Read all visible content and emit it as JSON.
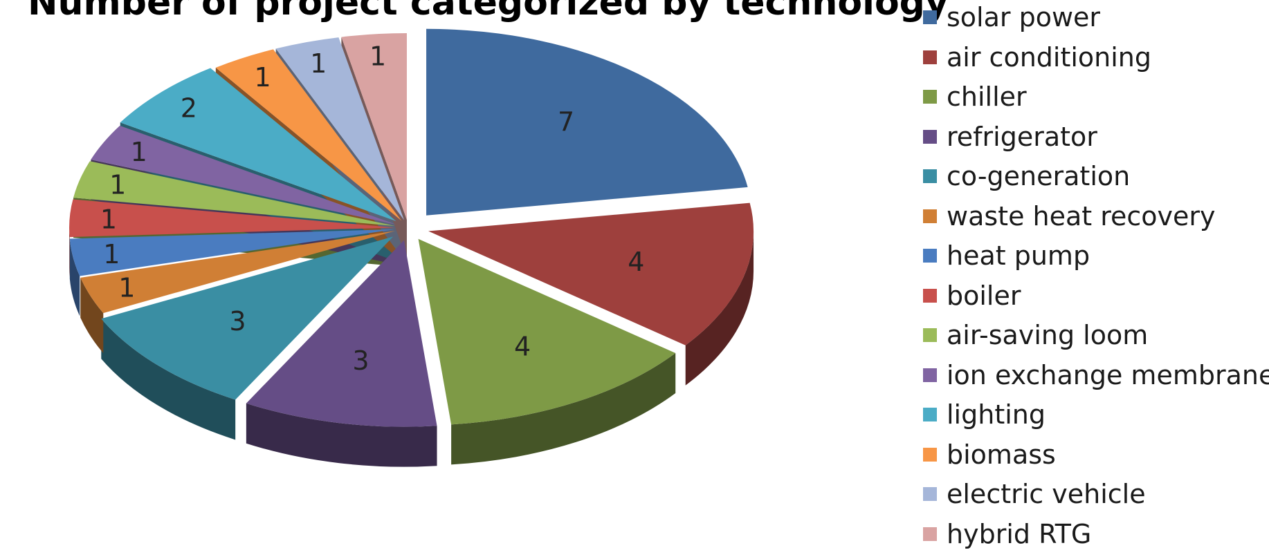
{
  "chart_data": {
    "type": "pie",
    "title": "Number of project categorized by technology",
    "legend_position": "right",
    "categories": [
      "solar power",
      "air conditioning",
      "chiller",
      "refrigerator",
      "co-generation",
      "waste heat recovery",
      "heat pump",
      "boiler",
      "air-saving loom",
      "ion exchange membrane",
      "lighting",
      "biomass",
      "electric vehicle",
      "hybrid RTG"
    ],
    "values": [
      7,
      4,
      4,
      3,
      3,
      1,
      1,
      1,
      1,
      1,
      2,
      1,
      1,
      1
    ],
    "value_labels": [
      "7",
      "4",
      "4",
      "3",
      "3",
      "1",
      "1",
      "1",
      "1",
      "1",
      "2",
      "1",
      "1",
      "1"
    ],
    "colors": [
      "#3f6a9e",
      "#9e403d",
      "#7e9a46",
      "#654d86",
      "#3a8ea3",
      "#d07f35",
      "#4a7cc0",
      "#c8504c",
      "#9bbb59",
      "#8064a2",
      "#4bacc6",
      "#f79646",
      "#a5b6d9",
      "#d9a3a2"
    ]
  }
}
